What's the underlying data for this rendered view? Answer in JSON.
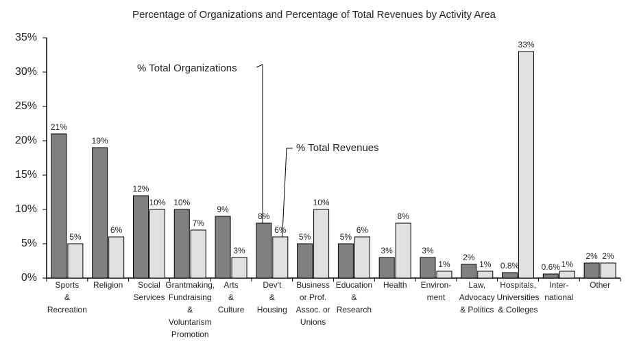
{
  "chart_data": {
    "type": "bar",
    "title": "Percentage of Organizations and Percentage of Total Revenues by Activity Area",
    "categories": [
      [
        "Sports",
        "&",
        "Recreation"
      ],
      [
        "Religion"
      ],
      [
        "Social",
        "Services"
      ],
      [
        "Grantmaking,",
        "Fundraising",
        "&",
        "Voluntarism",
        "Promotion"
      ],
      [
        "Arts",
        "&",
        "Culture"
      ],
      [
        "Dev't",
        "&",
        "Housing"
      ],
      [
        "Business",
        "or Prof.",
        "Assoc. or",
        "Unions"
      ],
      [
        "Education",
        "&",
        "Research"
      ],
      [
        "Health"
      ],
      [
        "Environ-",
        "ment"
      ],
      [
        "Law,",
        "Advocacy",
        "& Politics"
      ],
      [
        "Hospitals,",
        "Universities",
        "& Colleges"
      ],
      [
        "Inter-",
        "national"
      ],
      [
        "Other"
      ]
    ],
    "series": [
      {
        "name": "% Total Organizations",
        "color": "#808080",
        "values": [
          21,
          19,
          12,
          10,
          9,
          8,
          5,
          5,
          3,
          3,
          2,
          0.8,
          0.6,
          2.2
        ],
        "value_labels": [
          "21%",
          "19%",
          "12%",
          "10%",
          "9%",
          "8%",
          "5%",
          "5%",
          "3%",
          "3%",
          "2%",
          "0.8%",
          "0.6%",
          "2%"
        ]
      },
      {
        "name": "% Total Revenues",
        "color": "#e0e0e0",
        "values": [
          5,
          6,
          10,
          7,
          3,
          6,
          10,
          6,
          8,
          1,
          1,
          33,
          1,
          2.2
        ],
        "value_labels": [
          "5%",
          "6%",
          "10%",
          "7%",
          "3%",
          "6%",
          "10%",
          "6%",
          "8%",
          "1%",
          "1%",
          "33%",
          "1%",
          "2%"
        ]
      }
    ],
    "ylim": [
      0,
      35
    ],
    "yticks": [
      {
        "value": 0,
        "label": "0%"
      },
      {
        "value": 5,
        "label": "5%"
      },
      {
        "value": 10,
        "label": "10%"
      },
      {
        "value": 15,
        "label": "15%"
      },
      {
        "value": 20,
        "label": "20%"
      },
      {
        "value": 25,
        "label": "25%"
      },
      {
        "value": 30,
        "label": "30%"
      },
      {
        "value": 35,
        "label": "35%"
      }
    ],
    "grid": false
  }
}
